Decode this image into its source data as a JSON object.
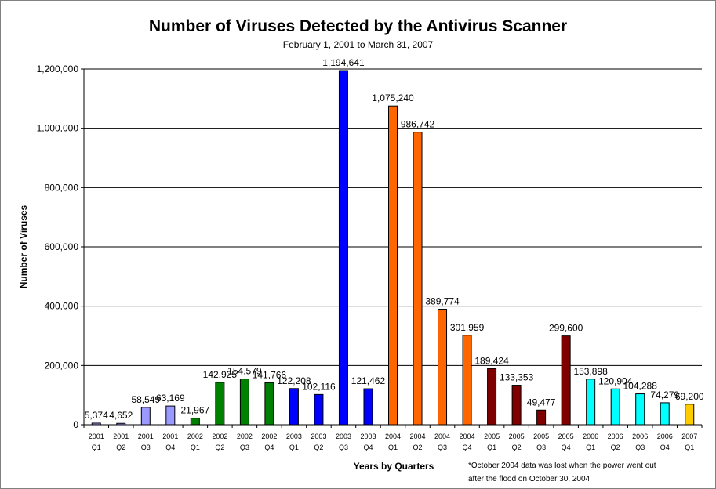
{
  "chart_data": {
    "type": "bar",
    "title": "Number of Viruses Detected by the Antivirus Scanner",
    "subtitle": "February 1, 2001 to March 31, 2007",
    "xlabel": "Years by Quarters",
    "ylabel": "Number of Viruses",
    "ylim": [
      0,
      1200000
    ],
    "yticks": [
      0,
      200000,
      400000,
      600000,
      800000,
      1000000,
      1200000
    ],
    "ytick_labels": [
      "0",
      "200,000",
      "400,000",
      "600,000",
      "800,000",
      "1,000,000",
      "1,200,000"
    ],
    "grid": true,
    "footnote_lines": [
      "*October 2004 data was lost when the power went out",
      "after the flood on October 30, 2004."
    ],
    "categories": [
      {
        "year": "2001",
        "quarter": "Q1"
      },
      {
        "year": "2001",
        "quarter": "Q2"
      },
      {
        "year": "2001",
        "quarter": "Q3"
      },
      {
        "year": "2001",
        "quarter": "Q4"
      },
      {
        "year": "2002",
        "quarter": "Q1"
      },
      {
        "year": "2002",
        "quarter": "Q2"
      },
      {
        "year": "2002",
        "quarter": "Q3"
      },
      {
        "year": "2002",
        "quarter": "Q4"
      },
      {
        "year": "2003",
        "quarter": "Q1"
      },
      {
        "year": "2003",
        "quarter": "Q2"
      },
      {
        "year": "2003",
        "quarter": "Q3"
      },
      {
        "year": "2003",
        "quarter": "Q4"
      },
      {
        "year": "2004",
        "quarter": "Q1"
      },
      {
        "year": "2004",
        "quarter": "Q2"
      },
      {
        "year": "2004",
        "quarter": "Q3"
      },
      {
        "year": "2004",
        "quarter": "Q4"
      },
      {
        "year": "2005",
        "quarter": "Q1"
      },
      {
        "year": "2005",
        "quarter": "Q2"
      },
      {
        "year": "2005",
        "quarter": "Q3"
      },
      {
        "year": "2005",
        "quarter": "Q4"
      },
      {
        "year": "2006",
        "quarter": "Q1"
      },
      {
        "year": "2006",
        "quarter": "Q2"
      },
      {
        "year": "2006",
        "quarter": "Q3"
      },
      {
        "year": "2006",
        "quarter": "Q4"
      },
      {
        "year": "2007",
        "quarter": "Q1"
      }
    ],
    "values": [
      5374,
      4652,
      58549,
      63169,
      21967,
      142925,
      154579,
      141766,
      122208,
      102116,
      1194641,
      121462,
      1075240,
      986742,
      389774,
      301959,
      189424,
      133353,
      49477,
      299600,
      153898,
      120904,
      104288,
      74279,
      69200
    ],
    "value_labels": [
      "5,374",
      "4,652",
      "58,549",
      "63,169",
      "21,967",
      "142,925",
      "154,579",
      "141,766",
      "122,208",
      "102,116",
      "1,194,641",
      "121,462",
      "1,075,240",
      "986,742",
      "389,774",
      "301,959",
      "189,424",
      "133,353",
      "49,477",
      "299,600",
      "153,898",
      "120,904",
      "104,288",
      "74,279",
      "69,200"
    ],
    "year_colors": {
      "2001": "#9999ff",
      "2002": "#008000",
      "2003": "#0000ff",
      "2004": "#ff6600",
      "2005": "#800000",
      "2006": "#00ffff",
      "2007": "#ffcc00"
    }
  }
}
